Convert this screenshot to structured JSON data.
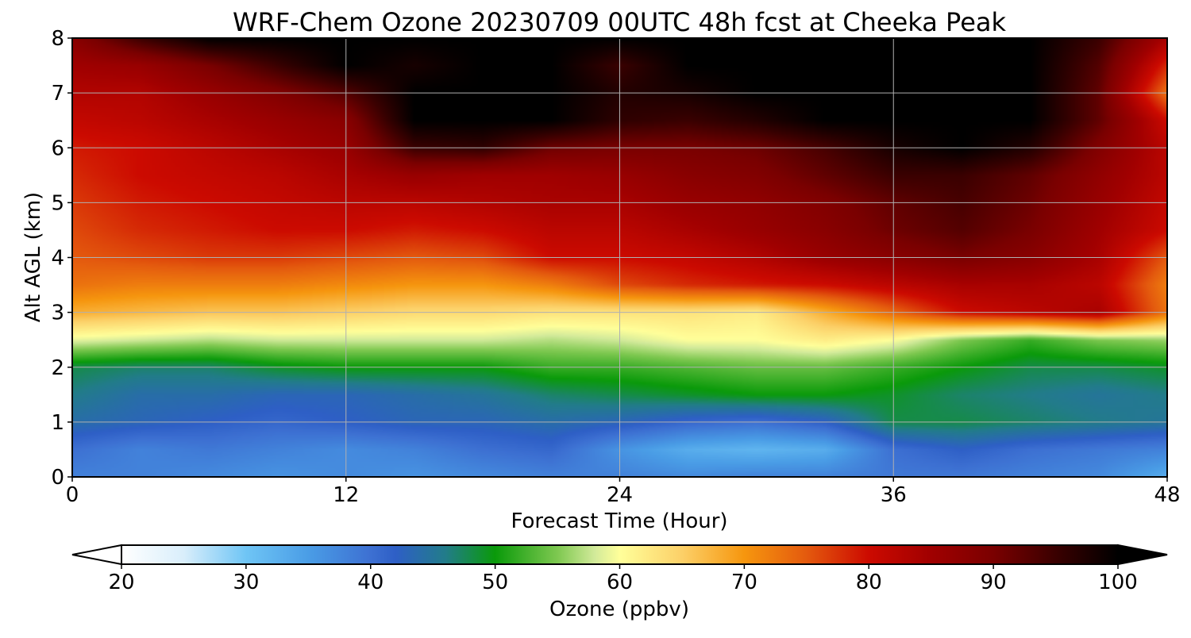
{
  "chart_data": {
    "type": "heatmap",
    "title": "WRF-Chem Ozone  20230709 00UTC 48h fcst at Cheeka Peak",
    "xlabel": "Forecast Time (Hour)",
    "ylabel": "Alt AGL (km)",
    "xlim": [
      0,
      48
    ],
    "ylim": [
      0,
      8
    ],
    "xticks": [
      0,
      12,
      24,
      36,
      48
    ],
    "yticks": [
      0,
      1,
      2,
      3,
      4,
      5,
      6,
      7,
      8
    ],
    "grid": true,
    "x_hours": [
      0,
      3,
      6,
      9,
      12,
      15,
      18,
      21,
      24,
      27,
      30,
      33,
      36,
      39,
      42,
      45,
      48
    ],
    "z_km": [
      0,
      0.5,
      1,
      1.5,
      2,
      2.5,
      3,
      3.5,
      4,
      4.5,
      5,
      5.5,
      6,
      6.5,
      7,
      7.5,
      8
    ],
    "values": [
      [
        38,
        38,
        37,
        36,
        37,
        36,
        37,
        38,
        38,
        37,
        38,
        38,
        39,
        39,
        38,
        37,
        33
      ],
      [
        40,
        38,
        39,
        38,
        37,
        38,
        40,
        41,
        36,
        33,
        32,
        33,
        40,
        42,
        40,
        39,
        38
      ],
      [
        44,
        43,
        42,
        41,
        42,
        43,
        43,
        44,
        43,
        41,
        40,
        42,
        48,
        48,
        47,
        46,
        45
      ],
      [
        46,
        44,
        44,
        43,
        43,
        44,
        45,
        47,
        48,
        49,
        50,
        50,
        49,
        47,
        46,
        45,
        46
      ],
      [
        48,
        47,
        47,
        49,
        50,
        50,
        50,
        52,
        52,
        53,
        54,
        54,
        52,
        50,
        48,
        48,
        49
      ],
      [
        59,
        58,
        57,
        58,
        58,
        58,
        58,
        57,
        58,
        60,
        60,
        62,
        60,
        55,
        52,
        55,
        56
      ],
      [
        68,
        67,
        66,
        66,
        65,
        64,
        64,
        63,
        63,
        63,
        62,
        68,
        74,
        80,
        82,
        84,
        73
      ],
      [
        73,
        72,
        72,
        72,
        71,
        70,
        70,
        72,
        76,
        78,
        79,
        80,
        82,
        84,
        84,
        82,
        72
      ],
      [
        75,
        76,
        77,
        77,
        76,
        75,
        76,
        80,
        80,
        81,
        83,
        86,
        88,
        90,
        88,
        84,
        75
      ],
      [
        76,
        78,
        79,
        80,
        80,
        79,
        80,
        82,
        82,
        84,
        86,
        88,
        91,
        93,
        90,
        85,
        80
      ],
      [
        77,
        79,
        80,
        81,
        82,
        82,
        83,
        84,
        84,
        86,
        87,
        89,
        92,
        94,
        91,
        86,
        81
      ],
      [
        78,
        80,
        81,
        82,
        84,
        86,
        85,
        85,
        86,
        88,
        89,
        92,
        95,
        95,
        92,
        87,
        82
      ],
      [
        79,
        80,
        82,
        84,
        86,
        95,
        96,
        91,
        90,
        90,
        91,
        94,
        98,
        100,
        97,
        89,
        82
      ],
      [
        81,
        82,
        84,
        86,
        88,
        100,
        100,
        100,
        96,
        95,
        97,
        100,
        100,
        100,
        100,
        92,
        80
      ],
      [
        83,
        83,
        86,
        89,
        93,
        100,
        100,
        100,
        97,
        98,
        100,
        100,
        100,
        100,
        100,
        92,
        73
      ],
      [
        85,
        86,
        90,
        95,
        100,
        98,
        100,
        100,
        95,
        100,
        100,
        100,
        100,
        100,
        100,
        93,
        78
      ],
      [
        88,
        95,
        100,
        100,
        100,
        100,
        100,
        100,
        100,
        100,
        100,
        100,
        100,
        100,
        100,
        95,
        84
      ]
    ],
    "colorbar": {
      "label": "Ozone  (ppbv)",
      "min": 20,
      "max": 100,
      "ticks": [
        20,
        30,
        40,
        50,
        60,
        70,
        80,
        90,
        100
      ],
      "extend": "both",
      "stops": [
        {
          "v": 20,
          "c": "#ffffff"
        },
        {
          "v": 25,
          "c": "#d9eefb"
        },
        {
          "v": 30,
          "c": "#6fc5f5"
        },
        {
          "v": 35,
          "c": "#4a9de6"
        },
        {
          "v": 40,
          "c": "#3d70d2"
        },
        {
          "v": 42,
          "c": "#2e5fc6"
        },
        {
          "v": 46,
          "c": "#227c8a"
        },
        {
          "v": 50,
          "c": "#0a9a0a"
        },
        {
          "v": 55,
          "c": "#7ec850"
        },
        {
          "v": 58,
          "c": "#d2ea9a"
        },
        {
          "v": 60,
          "c": "#ffff9a"
        },
        {
          "v": 65,
          "c": "#fcd068"
        },
        {
          "v": 70,
          "c": "#f6960e"
        },
        {
          "v": 75,
          "c": "#e45a0e"
        },
        {
          "v": 80,
          "c": "#cc0a00"
        },
        {
          "v": 85,
          "c": "#a00000"
        },
        {
          "v": 90,
          "c": "#7a0000"
        },
        {
          "v": 95,
          "c": "#3a0000"
        },
        {
          "v": 100,
          "c": "#000000"
        }
      ]
    }
  }
}
